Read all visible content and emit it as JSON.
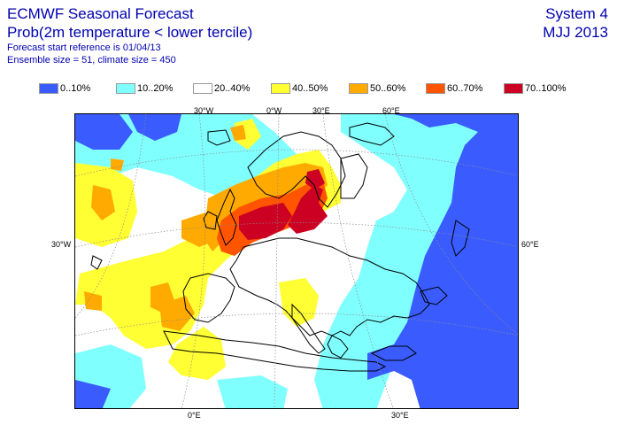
{
  "header": {
    "title": "ECMWF Seasonal Forecast",
    "subtitle": "Prob(2m temperature < lower tercile)",
    "start_ref": "Forecast start reference is 01/04/13",
    "ensemble": "Ensemble size = 51, climate size = 450",
    "system": "System 4",
    "period": "MJJ 2013"
  },
  "legend": [
    {
      "label": "0..10%",
      "color": "#3a5cff"
    },
    {
      "label": "10..20%",
      "color": "#80ffff"
    },
    {
      "label": "20..40%",
      "color": "#ffffff"
    },
    {
      "label": "40..50%",
      "color": "#ffff33"
    },
    {
      "label": "50..60%",
      "color": "#ffaa00"
    },
    {
      "label": "60..70%",
      "color": "#ff5500"
    },
    {
      "label": "70..100%",
      "color": "#cc0022"
    }
  ],
  "grid_labels": {
    "top": [
      "30°W",
      "0°W",
      "30°E",
      "60°E"
    ],
    "left": [
      "30°W"
    ],
    "right": [
      "60°E"
    ],
    "bottom": [
      "0°E",
      "30°E"
    ]
  }
}
